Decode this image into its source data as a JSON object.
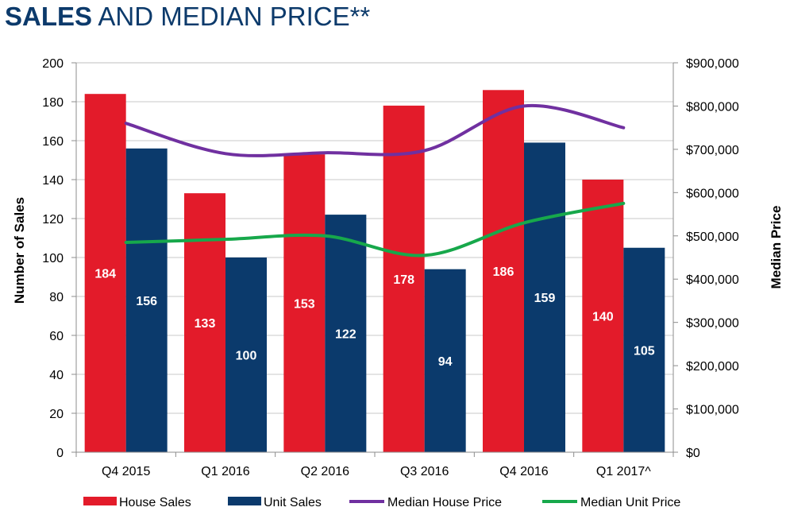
{
  "title": {
    "bold": "SALES",
    "rest": " AND MEDIAN PRICE**"
  },
  "chart_data": {
    "type": "bar",
    "title": "SALES AND MEDIAN PRICE**",
    "categories": [
      "Q4 2015",
      "Q1 2016",
      "Q2 2016",
      "Q3 2016",
      "Q4 2016",
      "Q1 2017^"
    ],
    "ylabel": "Number of Sales",
    "y2label": "Median Price",
    "ylim": [
      0,
      200
    ],
    "y2lim": [
      0,
      900000
    ],
    "yticks": [
      "0",
      "20",
      "40",
      "60",
      "80",
      "100",
      "120",
      "140",
      "160",
      "180",
      "200"
    ],
    "y2ticks": [
      "$0",
      "$100,000",
      "$200,000",
      "$300,000",
      "$400,000",
      "$500,000",
      "$600,000",
      "$700,000",
      "$800,000",
      "$900,000"
    ],
    "grid": true,
    "legend_position": "bottom",
    "series": [
      {
        "name": "House Sales",
        "kind": "bar",
        "axis": "left",
        "color": "#e31b2a",
        "values": [
          184,
          133,
          153,
          178,
          186,
          140
        ]
      },
      {
        "name": "Unit Sales",
        "kind": "bar",
        "axis": "left",
        "color": "#0b3a6c",
        "values": [
          156,
          100,
          122,
          94,
          159,
          105
        ]
      },
      {
        "name": "Median House Price",
        "kind": "line",
        "axis": "right",
        "color": "#7030a0",
        "values": [
          760000,
          690000,
          692000,
          697000,
          800000,
          750000
        ]
      },
      {
        "name": "Median Unit Price",
        "kind": "line",
        "axis": "right",
        "color": "#17a84b",
        "values": [
          485000,
          492000,
          500000,
          455000,
          530000,
          575000
        ]
      }
    ]
  }
}
